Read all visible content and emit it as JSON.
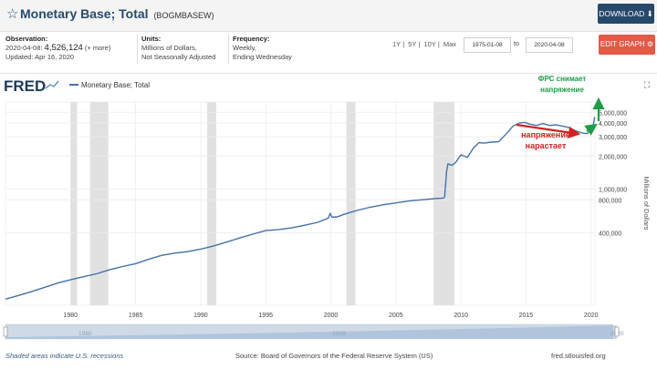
{
  "header": {
    "title": "Monetary Base; Total",
    "series_code": "(BOGMBASEW)",
    "download_label": "DOWNLOAD ⬇"
  },
  "info": {
    "observation_label": "Observation:",
    "observation_date": "2020-04-08:",
    "observation_value": "4,526,124",
    "observation_more": "(+ more)",
    "updated": "Updated: Apr 16, 2020",
    "units_label": "Units:",
    "units_line1": "Millions of Dollars,",
    "units_line2": "Not Seasonally Adjusted",
    "frequency_label": "Frequency:",
    "frequency_line1": "Weekly,",
    "frequency_line2": "Ending Wednesday"
  },
  "controls": {
    "ranges": [
      "1Y",
      "5Y",
      "10Y",
      "Max"
    ],
    "start_date": "1975-01-08",
    "to_label": "to",
    "end_date": "2020-04-08",
    "edit_label": "EDIT GRAPH ⚙"
  },
  "footer": {
    "recession_note": "Shaded areas indicate U.S. recessions",
    "source": "Source: Board of Governors of the Federal Reserve System (US)",
    "site": "fred.stlouisfed.org"
  },
  "chart_data": {
    "type": "line",
    "logo": "FRED",
    "legend": "Monetary Base; Total",
    "ylabel": "Millions of Dollars",
    "y_scale": "log",
    "ylim": [
      88000,
      6200000
    ],
    "xlim": [
      1975.0,
      2020.3
    ],
    "x_ticks": [
      1980,
      1985,
      1990,
      1995,
      2000,
      2005,
      2010,
      2015,
      2020
    ],
    "y_ticks": [
      {
        "value": 400000,
        "label": "400,000"
      },
      {
        "value": 800000,
        "label": "800,000"
      },
      {
        "value": 1000000,
        "label": "1,000,000"
      },
      {
        "value": 2000000,
        "label": "2,000,000"
      },
      {
        "value": 3000000,
        "label": "3,000,000"
      },
      {
        "value": 4000000,
        "label": "4,000,000"
      },
      {
        "value": 5000000,
        "label": "5,000,000"
      }
    ],
    "recessions": [
      [
        1980.0,
        1980.5
      ],
      [
        1981.5,
        1982.9
      ],
      [
        1990.5,
        1991.2
      ],
      [
        2001.2,
        2001.9
      ],
      [
        2007.9,
        2009.5
      ]
    ],
    "series": [
      {
        "name": "Monetary Base; Total",
        "color": "#4572a7",
        "x": [
          1975.0,
          1976.0,
          1977.0,
          1978.0,
          1979.0,
          1980.0,
          1981.0,
          1982.0,
          1983.0,
          1984.0,
          1985.0,
          1986.0,
          1987.0,
          1988.0,
          1989.0,
          1990.0,
          1991.0,
          1992.0,
          1993.0,
          1994.0,
          1995.0,
          1996.0,
          1997.0,
          1998.0,
          1999.0,
          1999.8,
          1999.95,
          2000.1,
          2000.5,
          2001.0,
          2002.0,
          2003.0,
          2004.0,
          2005.0,
          2006.0,
          2007.0,
          2008.0,
          2008.65,
          2008.75,
          2008.9,
          2009.0,
          2009.3,
          2009.6,
          2010.0,
          2010.5,
          2011.0,
          2011.4,
          2011.8,
          2012.3,
          2012.9,
          2013.5,
          2014.0,
          2014.5,
          2014.9,
          2015.3,
          2015.8,
          2016.3,
          2016.8,
          2017.3,
          2017.8,
          2018.3,
          2018.8,
          2019.3,
          2019.7,
          2020.0,
          2020.1,
          2020.2,
          2020.27
        ],
        "y": [
          100000,
          108000,
          117000,
          128000,
          140000,
          150000,
          160000,
          170000,
          185000,
          198000,
          210000,
          230000,
          250000,
          262000,
          270000,
          285000,
          305000,
          330000,
          360000,
          390000,
          420000,
          430000,
          445000,
          470000,
          500000,
          545000,
          600000,
          555000,
          560000,
          590000,
          640000,
          685000,
          720000,
          750000,
          780000,
          800000,
          820000,
          830000,
          850000,
          1450000,
          1700000,
          1650000,
          1750000,
          2050000,
          1950000,
          2400000,
          2650000,
          2620000,
          2680000,
          2700000,
          3200000,
          3750000,
          4000000,
          4050000,
          3900000,
          3800000,
          3950000,
          3800000,
          3850000,
          3750000,
          3650000,
          3400000,
          3250000,
          3200000,
          3400000,
          3500000,
          4000000,
          4526124
        ]
      }
    ],
    "annotations": [
      {
        "text": "ФРС снимает",
        "color": "#1f9d47"
      },
      {
        "text": "напряжение",
        "color": "#1f9d47"
      },
      {
        "text": "напряжение",
        "color": "#d62020"
      },
      {
        "text": "нарастает",
        "color": "#d62020"
      }
    ],
    "navigator": {
      "labels": [
        "1980",
        "2000",
        "2020"
      ]
    }
  }
}
